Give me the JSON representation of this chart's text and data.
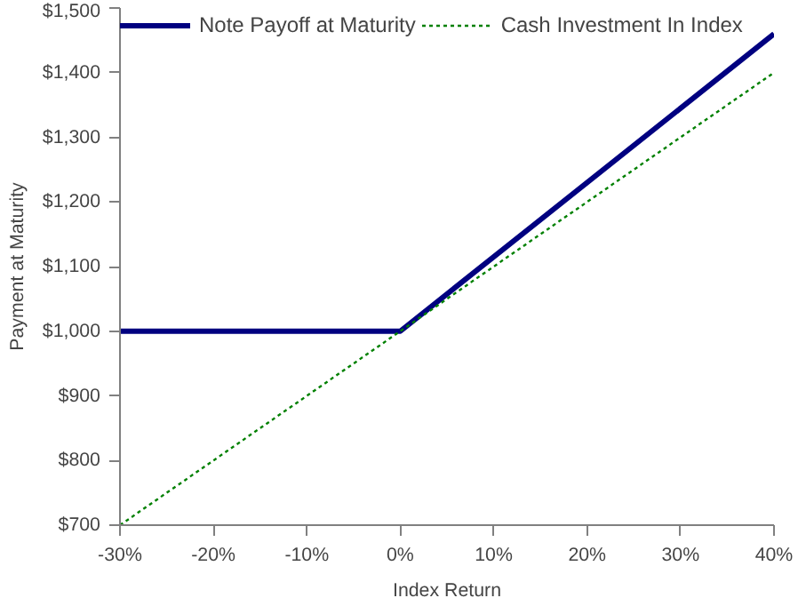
{
  "chart_data": {
    "type": "line",
    "xlabel": "Index Return",
    "ylabel": "Payment at Maturity",
    "x": [
      -30,
      0,
      40
    ],
    "series": [
      {
        "name": "Note Payoff at Maturity",
        "color": "#000080",
        "values": [
          1000,
          1000,
          1460
        ],
        "line_style": "solid"
      },
      {
        "name": "Cash Investment In Index",
        "color": "#008000",
        "values": [
          700,
          1000,
          1400
        ],
        "line_style": "dotted"
      }
    ],
    "xlim": [
      -30,
      40
    ],
    "xticks": [
      {
        "value": -30,
        "label": "-30%"
      },
      {
        "value": -20,
        "label": "-20%"
      },
      {
        "value": -10,
        "label": "-10%"
      },
      {
        "value": 0,
        "label": "0%"
      },
      {
        "value": 10,
        "label": "10%"
      },
      {
        "value": 20,
        "label": "20%"
      },
      {
        "value": 30,
        "label": "30%"
      },
      {
        "value": 40,
        "label": "40%"
      }
    ],
    "ylim": [
      700,
      1500
    ],
    "yticks": [
      {
        "value": 700,
        "label": "$700"
      },
      {
        "value": 800,
        "label": "$800"
      },
      {
        "value": 900,
        "label": "$900"
      },
      {
        "value": 1000,
        "label": "$1,000"
      },
      {
        "value": 1100,
        "label": "$1,100"
      },
      {
        "value": 1200,
        "label": "$1,200"
      },
      {
        "value": 1300,
        "label": "$1,300"
      },
      {
        "value": 1400,
        "label": "$1,400"
      },
      {
        "value": 1500,
        "label": "$1,500"
      }
    ],
    "grid": false,
    "legend": "top",
    "marker": "none"
  }
}
